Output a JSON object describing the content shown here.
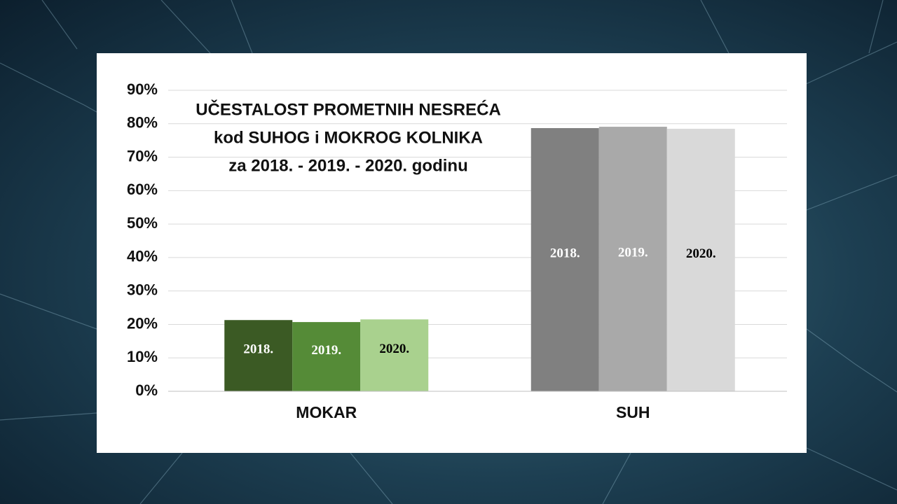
{
  "chart_data": {
    "type": "bar",
    "title_lines": [
      "UČESTALOST PROMETNIH NESREĆA",
      "kod SUHOG i MOKROG KOLNIKA",
      "za 2018. - 2019. - 2020. godinu"
    ],
    "categories": [
      "MOKAR",
      "SUH"
    ],
    "series": [
      {
        "name": "2018.",
        "colors": [
          "#3b5a24",
          "#808080"
        ],
        "values": [
          21.3,
          78.7
        ]
      },
      {
        "name": "2019.",
        "colors": [
          "#558b37",
          "#a9a9a9"
        ],
        "values": [
          20.7,
          79.1
        ]
      },
      {
        "name": "2020.",
        "colors": [
          "#a9d18e",
          "#d9d9d9"
        ],
        "values": [
          21.5,
          78.5
        ]
      }
    ],
    "ylim": [
      0,
      90
    ],
    "yticks": [
      {
        "value": 0,
        "label": "0%"
      },
      {
        "value": 10,
        "label": "10%"
      },
      {
        "value": 20,
        "label": "20%"
      },
      {
        "value": 30,
        "label": "30%"
      },
      {
        "value": 40,
        "label": "40%"
      },
      {
        "value": 50,
        "label": "50%"
      },
      {
        "value": 60,
        "label": "60%"
      },
      {
        "value": 70,
        "label": "70%"
      },
      {
        "value": 80,
        "label": "80%"
      },
      {
        "value": 90,
        "label": "90%"
      }
    ],
    "grid": true
  }
}
